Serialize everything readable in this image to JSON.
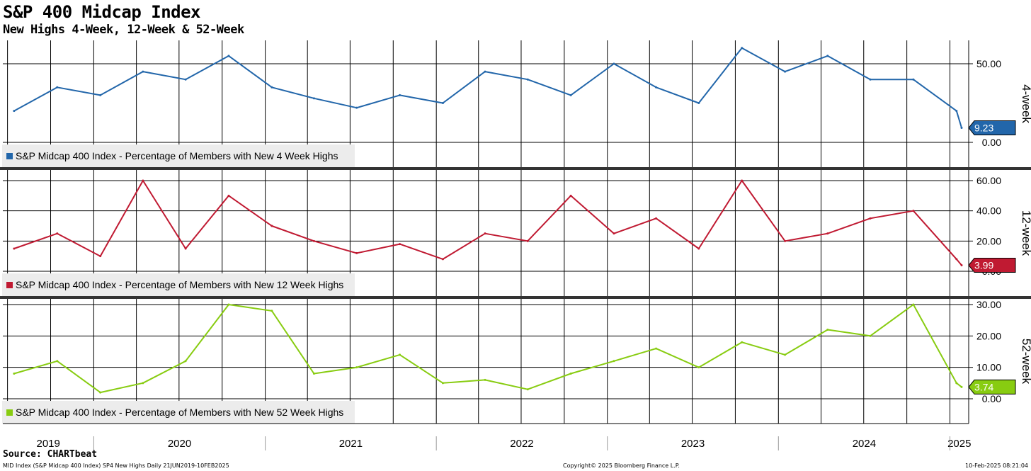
{
  "header": {
    "title": "S&P 400 Midcap Index",
    "subtitle": "New Highs 4-Week, 12-Week & 52-Week"
  },
  "footer": {
    "source": "Source: CHARTbeat",
    "info": "MID Index (S&P Midcap 400 Index) SP4 New Highs  Daily 21JUN2019-10FEB2025",
    "copyright": "Copyright© 2025 Bloomberg Finance L.P.",
    "timestamp": "10-Feb-2025 08:21:04"
  },
  "chart_data": [
    {
      "type": "line",
      "panel_label": "4-week",
      "legend": "S&P Midcap 400 Index - Percentage of Members with New 4 Week Highs",
      "color": "#2266aa",
      "last_value": "9.23",
      "yticks": [
        "50.00",
        "0.00"
      ],
      "ylim": [
        0,
        50
      ],
      "x": [
        "2019-07",
        "2019-10",
        "2020-01",
        "2020-04",
        "2020-07",
        "2020-10",
        "2021-01",
        "2021-04",
        "2021-07",
        "2021-10",
        "2022-01",
        "2022-04",
        "2022-07",
        "2022-10",
        "2023-01",
        "2023-04",
        "2023-07",
        "2023-10",
        "2024-01",
        "2024-04",
        "2024-07",
        "2024-10",
        "2025-01",
        "2025-02"
      ],
      "values": [
        20,
        35,
        30,
        45,
        40,
        55,
        35,
        28,
        22,
        30,
        25,
        45,
        40,
        30,
        50,
        35,
        25,
        60,
        45,
        55,
        40,
        40,
        20,
        9.23
      ]
    },
    {
      "type": "line",
      "panel_label": "12-week",
      "legend": "S&P Midcap 400 Index - Percentage of Members with New 12 Week Highs",
      "color": "#c01a32",
      "last_value": "3.99",
      "yticks": [
        "60.00",
        "40.00",
        "20.00",
        "0.00"
      ],
      "ylim": [
        0,
        60
      ],
      "x": [
        "2019-07",
        "2019-10",
        "2020-01",
        "2020-04",
        "2020-07",
        "2020-10",
        "2021-01",
        "2021-04",
        "2021-07",
        "2021-10",
        "2022-01",
        "2022-04",
        "2022-07",
        "2022-10",
        "2023-01",
        "2023-04",
        "2023-07",
        "2023-10",
        "2024-01",
        "2024-04",
        "2024-07",
        "2024-10",
        "2025-01",
        "2025-02"
      ],
      "values": [
        15,
        25,
        10,
        60,
        15,
        50,
        30,
        20,
        12,
        18,
        8,
        25,
        20,
        50,
        25,
        35,
        15,
        60,
        20,
        25,
        35,
        40,
        8,
        3.99
      ]
    },
    {
      "type": "line",
      "panel_label": "52-week",
      "legend": "S&P Midcap 400 Index - Percentage of Members with New 52 Week Highs",
      "color": "#88cc11",
      "last_value": "3.74",
      "yticks": [
        "30.00",
        "20.00",
        "10.00",
        "0.00"
      ],
      "ylim": [
        0,
        30
      ],
      "x": [
        "2019-07",
        "2019-10",
        "2020-01",
        "2020-04",
        "2020-07",
        "2020-10",
        "2021-01",
        "2021-04",
        "2021-07",
        "2021-10",
        "2022-01",
        "2022-04",
        "2022-07",
        "2022-10",
        "2023-01",
        "2023-04",
        "2023-07",
        "2023-10",
        "2024-01",
        "2024-04",
        "2024-07",
        "2024-10",
        "2025-01",
        "2025-02"
      ],
      "values": [
        8,
        12,
        2,
        5,
        12,
        30,
        28,
        8,
        10,
        14,
        5,
        6,
        3,
        8,
        12,
        16,
        10,
        18,
        14,
        22,
        20,
        30,
        5,
        3.74
      ]
    }
  ],
  "x_axis": {
    "year_labels": [
      "2019",
      "2020",
      "2021",
      "2022",
      "2023",
      "2024",
      "2025"
    ]
  }
}
